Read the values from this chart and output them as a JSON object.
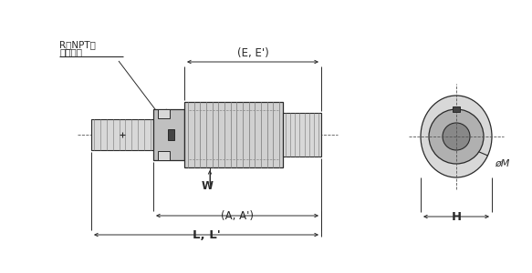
{
  "bg_color": "#ffffff",
  "line_color": "#2a2a2a",
  "gray_light": "#d8d8d8",
  "gray_mid": "#b0b0b0",
  "gray_dark": "#888888",
  "gray_body": "#c0c0c0",
  "gray_knurl_bg": "#d0d0d0",
  "gray_rib": "#909090",
  "label_LL": "L, L'",
  "label_AA": "(A, A')",
  "label_W": "W",
  "label_EE": "(E, E')",
  "label_H": "H",
  "label_oM": "øM",
  "label_conn": "接続口径",
  "label_RNPT": "R（NPT）",
  "fs_large": 9.5,
  "fs_medium": 8.5,
  "fs_small": 7.5
}
